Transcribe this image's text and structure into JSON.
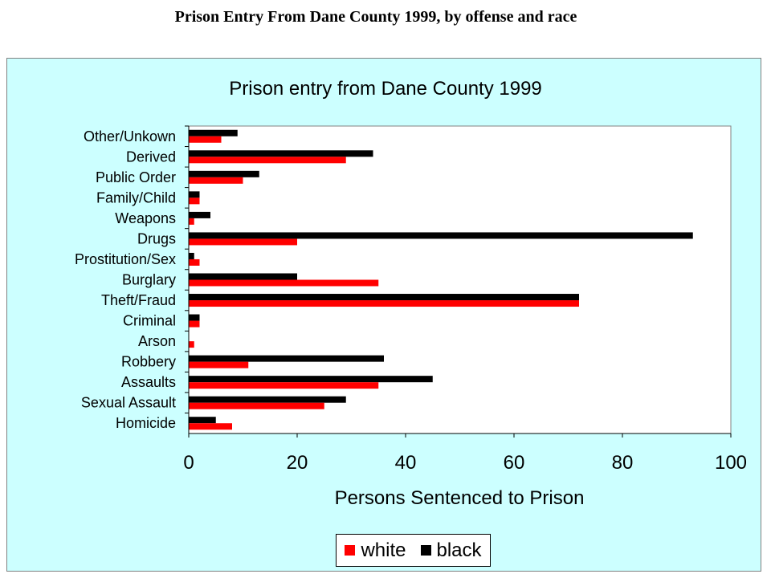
{
  "page_title": "Prison Entry From Dane County 1999, by offense and race",
  "colors": {
    "frame_background": "#ccffff",
    "plot_background": "#ffffff",
    "white": "#ff0000",
    "black": "#000000"
  },
  "chart_data": {
    "type": "bar",
    "orientation": "horizontal",
    "title": "Prison entry from Dane County 1999",
    "xlabel": "Persons Sentenced to Prison",
    "ylabel": "",
    "xlim": [
      0,
      100
    ],
    "xticks": [
      "0",
      "20",
      "40",
      "60",
      "80",
      "100"
    ],
    "grid": false,
    "legend_position": "bottom",
    "categories": [
      "Other/Unkown",
      "Derived",
      "Public Order",
      "Family/Child",
      "Weapons",
      "Drugs",
      "Prostitution/Sex",
      "Burglary",
      "Theft/Fraud",
      "Criminal",
      "Arson",
      "Robbery",
      "Assaults",
      "Sexual Assault",
      "Homicide"
    ],
    "series": [
      {
        "name": "white",
        "color": "#ff0000",
        "values": [
          6,
          29,
          10,
          2,
          1,
          20,
          2,
          35,
          72,
          2,
          1,
          11,
          35,
          25,
          8
        ]
      },
      {
        "name": "black",
        "color": "#000000",
        "values": [
          9,
          34,
          13,
          2,
          4,
          93,
          1,
          20,
          72,
          2,
          0,
          36,
          45,
          29,
          5
        ]
      }
    ]
  }
}
